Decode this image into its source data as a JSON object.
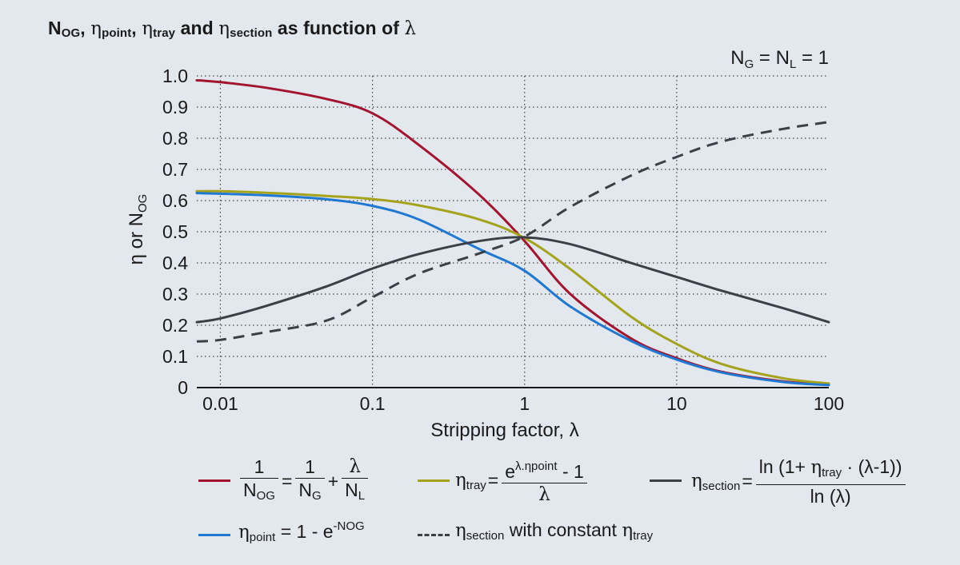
{
  "title": {
    "n": "N",
    "n_sub": "OG",
    "sep1": ", ",
    "eta1": "η",
    "eta1_sub": "point",
    "sep2": ", ",
    "eta2": "η",
    "eta2_sub": "tray",
    "and": " and ",
    "eta3": "η",
    "eta3_sub": "section",
    "rest": " as function of ",
    "lambda": "λ"
  },
  "legend": {
    "nog": {
      "one_a": "1",
      "nog": "N",
      "nog_sub": "OG",
      "eq": "=",
      "one_b": "1",
      "ng": "N",
      "ng_sub": "G",
      "plus": "+",
      "lam": "λ",
      "nl": "N",
      "nl_sub": "L",
      "color": "#a3152f"
    },
    "tray": {
      "eta": "η",
      "sub": "tray",
      "eq": "=",
      "num_e": "e",
      "num_sup": "λ.ηpoint",
      "num_rest": " - 1",
      "den": "λ",
      "color": "#a5a31c"
    },
    "section": {
      "eta": "η",
      "sub": "section",
      "eq": "=",
      "num_a": "ln (1+ ",
      "num_eta": "η",
      "num_sub": "tray",
      "num_b": " · (λ-1))",
      "den": "ln (λ)",
      "color": "#3b3f46"
    },
    "point": {
      "eta": "η",
      "sub": "point",
      "rest": " = 1 - e",
      "sup": "-NOG",
      "color": "#1f78d1"
    },
    "section_const": {
      "eta": "η",
      "sub": "section",
      "mid": " with constant ",
      "eta2": "η",
      "sub2": "tray",
      "color": "#3b3f46"
    }
  },
  "chart_data": {
    "type": "line",
    "annotation": {
      "n": "N",
      "g": "G",
      "eq": " = N",
      "l": "L",
      "end": " = 1"
    },
    "xlabel": "Stripping factor, λ",
    "ylabel": {
      "eta": "η",
      "or": " or N",
      "sub": "OG"
    },
    "x_scale": "log",
    "xlim": [
      0.007,
      100
    ],
    "ylim": [
      0,
      1.0
    ],
    "x_ticks": [
      {
        "v": 0.01,
        "label": "0.01"
      },
      {
        "v": 0.1,
        "label": "0.1"
      },
      {
        "v": 1,
        "label": "1"
      },
      {
        "v": 10,
        "label": "10"
      },
      {
        "v": 100,
        "label": "100"
      }
    ],
    "y_ticks": [
      {
        "v": 0,
        "label": "0"
      },
      {
        "v": 0.1,
        "label": "0.1"
      },
      {
        "v": 0.2,
        "label": "0.2"
      },
      {
        "v": 0.3,
        "label": "0.3"
      },
      {
        "v": 0.4,
        "label": "0.4"
      },
      {
        "v": 0.5,
        "label": "0.5"
      },
      {
        "v": 0.6,
        "label": "0.6"
      },
      {
        "v": 0.7,
        "label": "0.7"
      },
      {
        "v": 0.8,
        "label": "0.8"
      },
      {
        "v": 0.9,
        "label": "0.9"
      },
      {
        "v": 1.0,
        "label": "1.0"
      }
    ],
    "grid": "dotted",
    "x": [
      0.007,
      0.01,
      0.02,
      0.05,
      0.1,
      0.2,
      0.5,
      1,
      2,
      5,
      10,
      20,
      50,
      100
    ],
    "series": [
      {
        "key": "nog",
        "color": "#a3152f",
        "dashed": false,
        "values": [
          0.986,
          0.98,
          0.962,
          0.926,
          0.88,
          0.78,
          0.62,
          0.47,
          0.3,
          0.158,
          0.094,
          0.05,
          0.02,
          0.01
        ]
      },
      {
        "key": "tray",
        "color": "#a5a31c",
        "dashed": false,
        "values": [
          0.63,
          0.63,
          0.625,
          0.615,
          0.605,
          0.585,
          0.54,
          0.48,
          0.38,
          0.228,
          0.14,
          0.075,
          0.03,
          0.013
        ]
      },
      {
        "key": "point",
        "color": "#1f78d1",
        "dashed": false,
        "values": [
          0.624,
          0.622,
          0.617,
          0.604,
          0.583,
          0.54,
          0.445,
          0.375,
          0.26,
          0.15,
          0.09,
          0.048,
          0.018,
          0.008
        ]
      },
      {
        "key": "section",
        "color": "#3b3f46",
        "dashed": false,
        "values": [
          0.21,
          0.222,
          0.262,
          0.325,
          0.382,
          0.428,
          0.47,
          0.482,
          0.46,
          0.4,
          0.355,
          0.31,
          0.255,
          0.21
        ]
      },
      {
        "key": "section_const",
        "color": "#3b3f46",
        "dashed": true,
        "values": [
          0.148,
          0.153,
          0.178,
          0.215,
          0.29,
          0.365,
          0.43,
          0.485,
          0.58,
          0.68,
          0.74,
          0.79,
          0.83,
          0.852
        ]
      }
    ]
  }
}
